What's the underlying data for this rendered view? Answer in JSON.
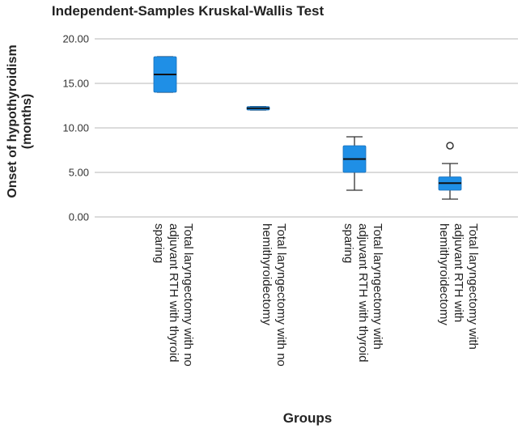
{
  "chart_data": {
    "type": "boxplot",
    "title": "Independent-Samples Kruskal-Wallis Test",
    "xlabel": "Groups",
    "ylabel_lines": [
      "Onset of hypothyroidism",
      "(months)"
    ],
    "ylim": [
      0,
      20
    ],
    "yticks": [
      "0.00",
      "5.00",
      "10.00",
      "15.00",
      "20.00"
    ],
    "grid": true,
    "box_color": "#1f8fe6",
    "categories": [
      {
        "lines": [
          "Total laryngectomy with no",
          "adjuvant RTH with thyroid",
          "sparing"
        ]
      },
      {
        "lines": [
          "Total laryngectomy with no",
          "hemithyroidectomy"
        ]
      },
      {
        "lines": [
          "Total laryngectomy with",
          "adjuvant RTH with thyroid",
          "sparing"
        ]
      },
      {
        "lines": [
          "Total laryngectomy with",
          "adjuvant RTH with",
          "hemithyroidectomy"
        ]
      }
    ],
    "boxes": [
      {
        "whisker_low": 14.0,
        "q1": 14.0,
        "median": 16.0,
        "q3": 18.0,
        "whisker_high": 18.0,
        "outliers": []
      },
      {
        "whisker_low": 12.0,
        "q1": 12.0,
        "median": 12.2,
        "q3": 12.4,
        "whisker_high": 12.4,
        "outliers": []
      },
      {
        "whisker_low": 3.0,
        "q1": 5.0,
        "median": 6.5,
        "q3": 8.0,
        "whisker_high": 9.0,
        "outliers": []
      },
      {
        "whisker_low": 2.0,
        "q1": 3.0,
        "median": 3.8,
        "q3": 4.5,
        "whisker_high": 6.0,
        "outliers": [
          8.0
        ]
      }
    ]
  }
}
